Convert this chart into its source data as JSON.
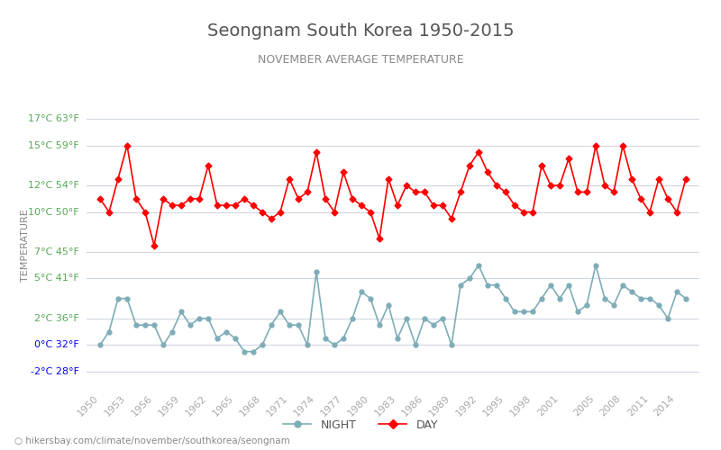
{
  "title": "Seongnam South Korea 1950-2015",
  "subtitle": "NOVEMBER AVERAGE TEMPERATURE",
  "xlabel_years": [
    1950,
    1953,
    1956,
    1959,
    1962,
    1965,
    1968,
    1971,
    1974,
    1977,
    1980,
    1983,
    1986,
    1989,
    1992,
    1995,
    1998,
    2001,
    2005,
    2008,
    2011,
    2014
  ],
  "years": [
    1950,
    1951,
    1952,
    1953,
    1954,
    1955,
    1956,
    1957,
    1958,
    1959,
    1960,
    1961,
    1962,
    1963,
    1964,
    1965,
    1966,
    1967,
    1968,
    1969,
    1970,
    1971,
    1972,
    1973,
    1974,
    1975,
    1976,
    1977,
    1978,
    1979,
    1980,
    1981,
    1982,
    1983,
    1984,
    1985,
    1986,
    1987,
    1988,
    1989,
    1990,
    1991,
    1992,
    1993,
    1994,
    1995,
    1996,
    1997,
    1998,
    1999,
    2000,
    2001,
    2002,
    2003,
    2004,
    2005,
    2006,
    2007,
    2008,
    2009,
    2010,
    2011,
    2012,
    2013,
    2014,
    2015
  ],
  "day": [
    11.0,
    10.0,
    12.5,
    15.0,
    11.0,
    10.0,
    7.5,
    11.0,
    10.5,
    10.5,
    11.0,
    11.0,
    13.5,
    10.5,
    10.5,
    10.5,
    11.0,
    10.5,
    10.0,
    9.5,
    10.0,
    12.5,
    11.0,
    11.5,
    14.5,
    11.0,
    10.0,
    13.0,
    11.0,
    10.5,
    10.0,
    8.0,
    12.5,
    10.5,
    12.0,
    11.5,
    11.5,
    10.5,
    10.5,
    9.5,
    11.5,
    13.5,
    14.5,
    13.0,
    12.0,
    11.5,
    10.5,
    10.0,
    10.0,
    13.5,
    12.0,
    12.0,
    14.0,
    11.5,
    11.5,
    15.0,
    12.0,
    11.5,
    15.0,
    12.5,
    11.0,
    10.0,
    12.5,
    11.0,
    10.0,
    12.5
  ],
  "night": [
    0.0,
    1.0,
    3.5,
    3.5,
    1.5,
    1.5,
    1.5,
    0.0,
    1.0,
    2.5,
    1.5,
    2.0,
    2.0,
    0.5,
    1.0,
    0.5,
    -0.5,
    -0.5,
    0.0,
    1.5,
    2.5,
    1.5,
    1.5,
    0.0,
    5.5,
    0.5,
    0.0,
    0.5,
    2.0,
    4.0,
    3.5,
    1.5,
    3.0,
    0.5,
    2.0,
    0.0,
    2.0,
    1.5,
    2.0,
    0.0,
    4.5,
    5.0,
    6.0,
    4.5,
    4.5,
    3.5,
    2.5,
    2.5,
    2.5,
    3.5,
    4.5,
    3.5,
    4.5,
    2.5,
    3.0,
    6.0,
    3.5,
    3.0,
    4.5,
    4.0,
    3.5,
    3.5,
    3.0,
    2.0,
    4.0,
    3.5
  ],
  "day_color": "#ff0000",
  "night_color": "#7eadb8",
  "background_color": "#ffffff",
  "grid_color": "#d0d8e0",
  "ylabel": "TEMPERATURE",
  "yticks_c": [
    -2,
    0,
    2,
    5,
    7,
    10,
    12,
    15,
    17
  ],
  "ylim": [
    -3.5,
    18.5
  ],
  "title_color": "#555555",
  "subtitle_color": "#888888",
  "ylabel_color": "#888888",
  "color_positive": "#55aa55",
  "color_zero_neg": "#0000ff",
  "legend_night_label": "NIGHT",
  "legend_day_label": "DAY",
  "footer_text": "hikersbay.com/climate/november/southkorea/seongnam",
  "footer_color": "#888888"
}
